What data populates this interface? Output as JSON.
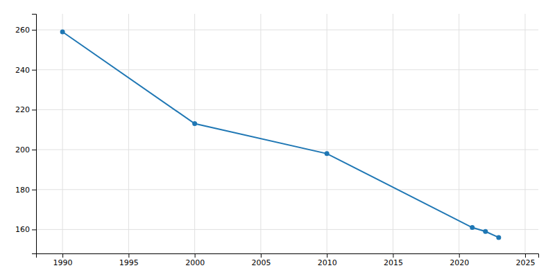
{
  "chart_data": {
    "type": "line",
    "x": [
      1990,
      2000,
      2010,
      2021,
      2022,
      2023
    ],
    "values": [
      259,
      213,
      198,
      161,
      159,
      156
    ],
    "marker": "circle",
    "xlim": [
      1988,
      2026
    ],
    "ylim": [
      148,
      268
    ],
    "xticks": [
      1990,
      1995,
      2000,
      2005,
      2010,
      2015,
      2020,
      2025
    ],
    "yticks": [
      160,
      180,
      200,
      220,
      240,
      260
    ],
    "grid": true
  }
}
